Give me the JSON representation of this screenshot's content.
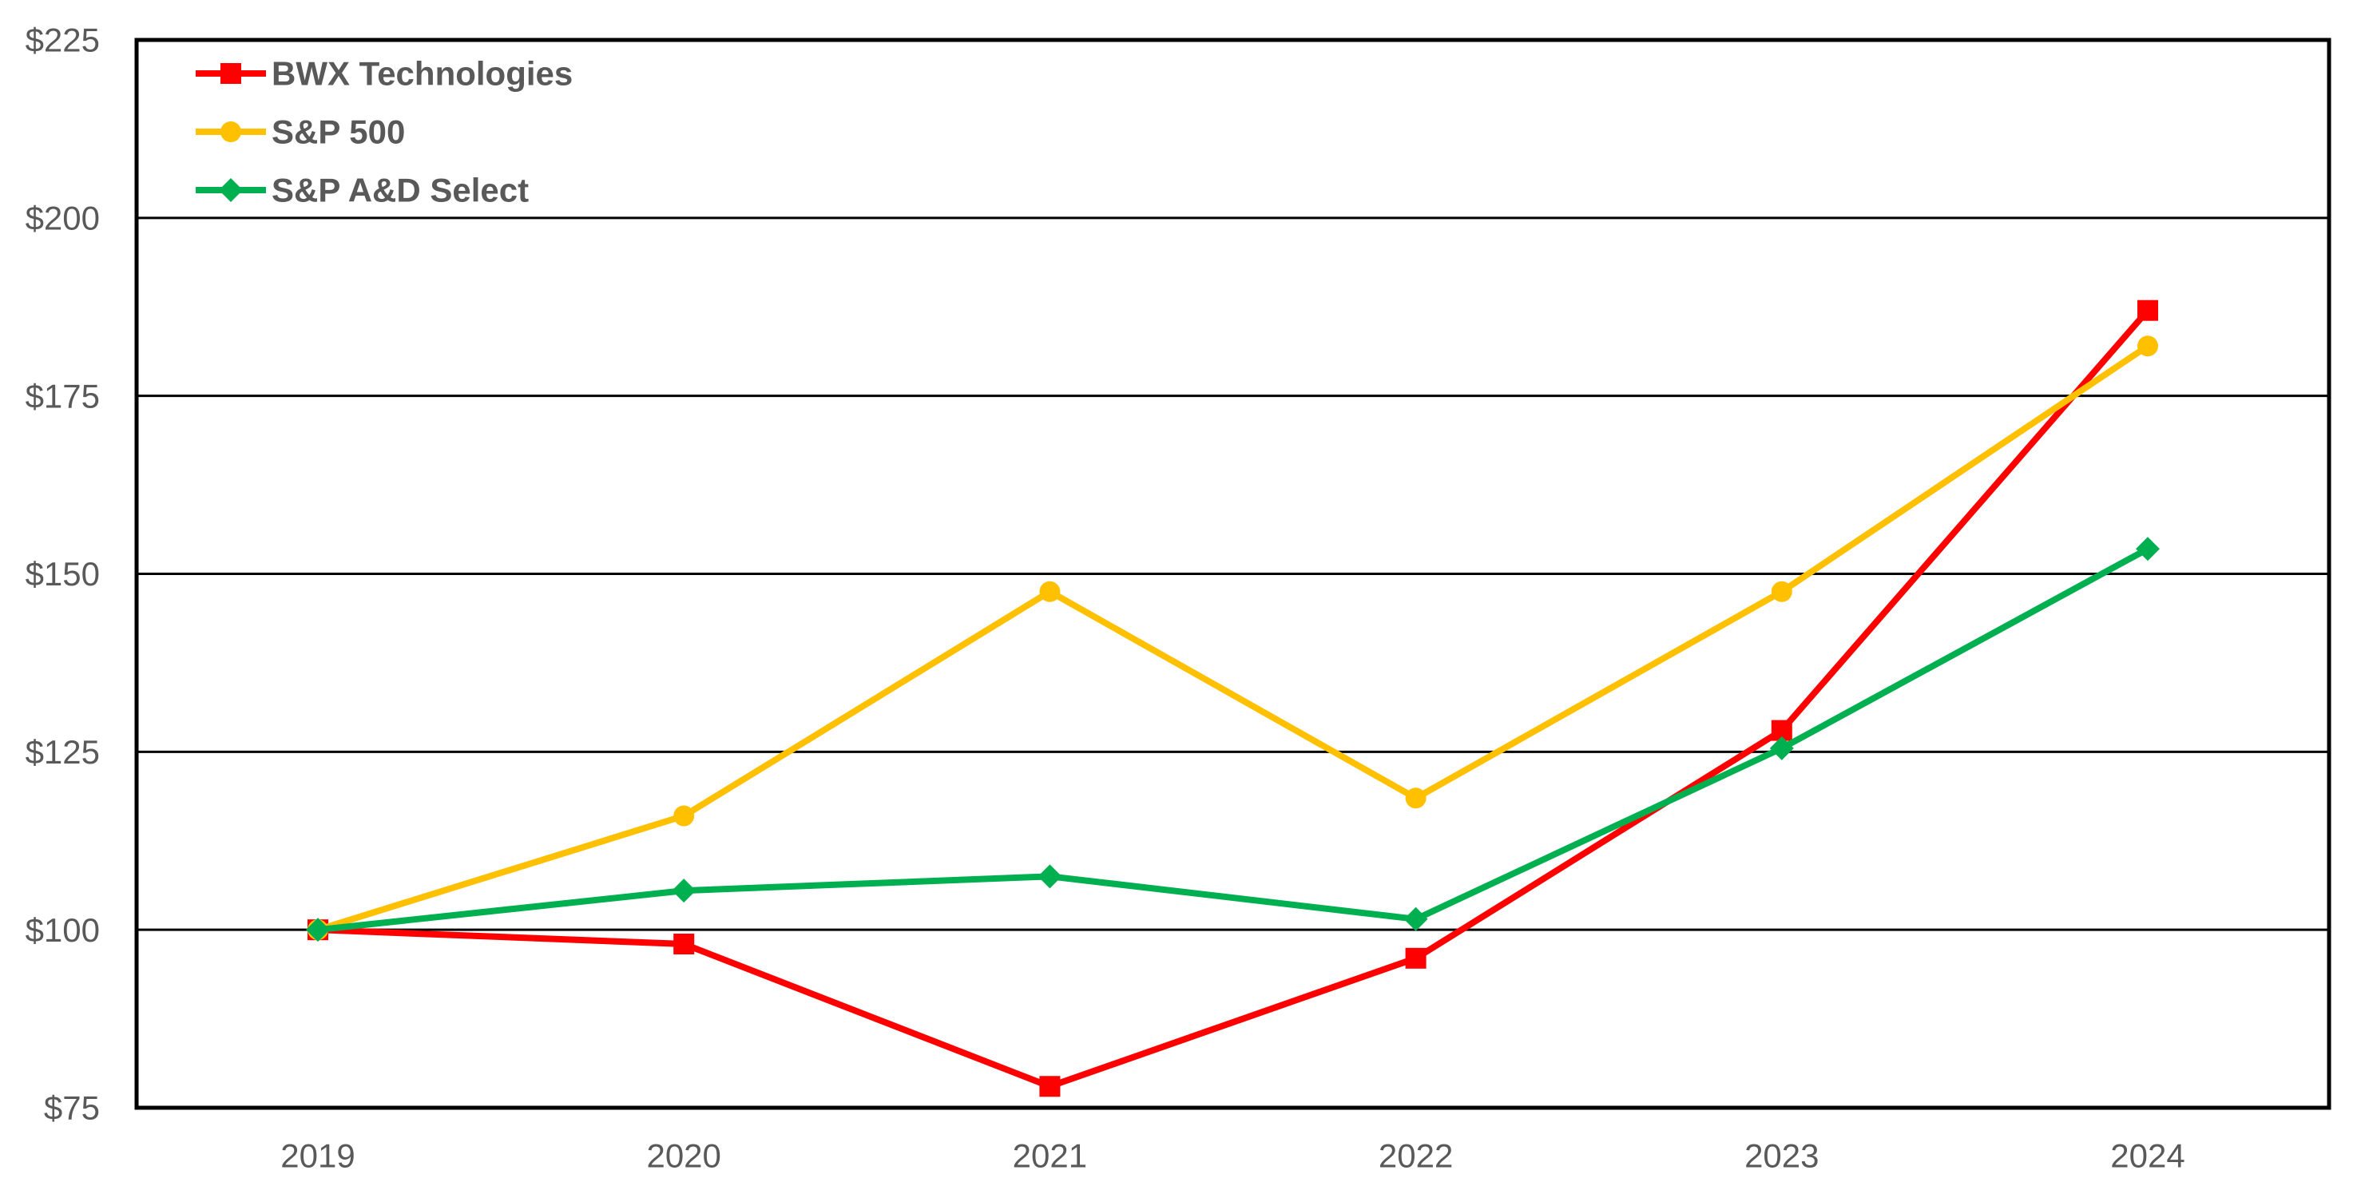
{
  "chart_data": {
    "type": "line",
    "categories": [
      "2019",
      "2020",
      "2021",
      "2022",
      "2023",
      "2024"
    ],
    "series": [
      {
        "name": "BWX Technologies",
        "color": "#FF0000",
        "marker": "square",
        "values": [
          100,
          98,
          78,
          96,
          128,
          187
        ]
      },
      {
        "name": "S&P 500",
        "color": "#FFC000",
        "marker": "circle",
        "values": [
          100,
          116,
          147.5,
          118.5,
          147.5,
          182
        ]
      },
      {
        "name": "S&P A&D Select",
        "color": "#00B050",
        "marker": "diamond",
        "values": [
          100,
          105.5,
          107.5,
          101.5,
          125.5,
          153.5
        ]
      }
    ],
    "xlabel": "",
    "ylabel": "",
    "ylim": [
      75,
      225
    ],
    "ytick_step": 25,
    "ytick_labels": [
      "$75",
      "$100",
      "$125",
      "$150",
      "$175",
      "$200",
      "$225"
    ],
    "grid": "horizontal-only",
    "legend_position": "inside-top-left",
    "colors": {
      "axis_text": "#595959",
      "gridline": "#000000",
      "plot_border": "#000000",
      "background": "#FFFFFF"
    }
  }
}
